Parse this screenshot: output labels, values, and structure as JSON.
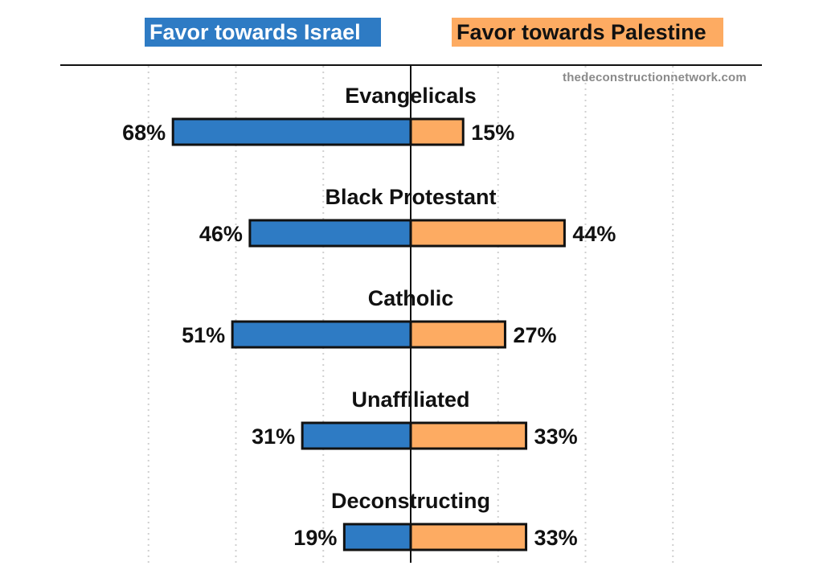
{
  "legend": {
    "israel": "Favor towards Israel",
    "palestine": "Favor towards Palestine"
  },
  "watermark": "thedeconstructionnetwork.com",
  "colors": {
    "israel": "#2e7bc4",
    "palestine": "#fdab62",
    "outline": "#111111",
    "grid": "#d0d0d0"
  },
  "chart_data": {
    "type": "bar",
    "orientation": "horizontal-diverging",
    "categories": [
      "Evangelicals",
      "Black Protestant",
      "Catholic",
      "Unaffiliated",
      "Deconstructing"
    ],
    "series": [
      {
        "name": "Favor towards Israel",
        "values": [
          68,
          46,
          51,
          31,
          19
        ],
        "labels": [
          "68%",
          "46%",
          "51%",
          "31%",
          "19%"
        ]
      },
      {
        "name": "Favor towards Palestine",
        "values": [
          15,
          44,
          27,
          33,
          33
        ],
        "labels": [
          "15%",
          "44%",
          "27%",
          "33%",
          "33%"
        ]
      }
    ],
    "grid": true,
    "legend_position": "top"
  }
}
